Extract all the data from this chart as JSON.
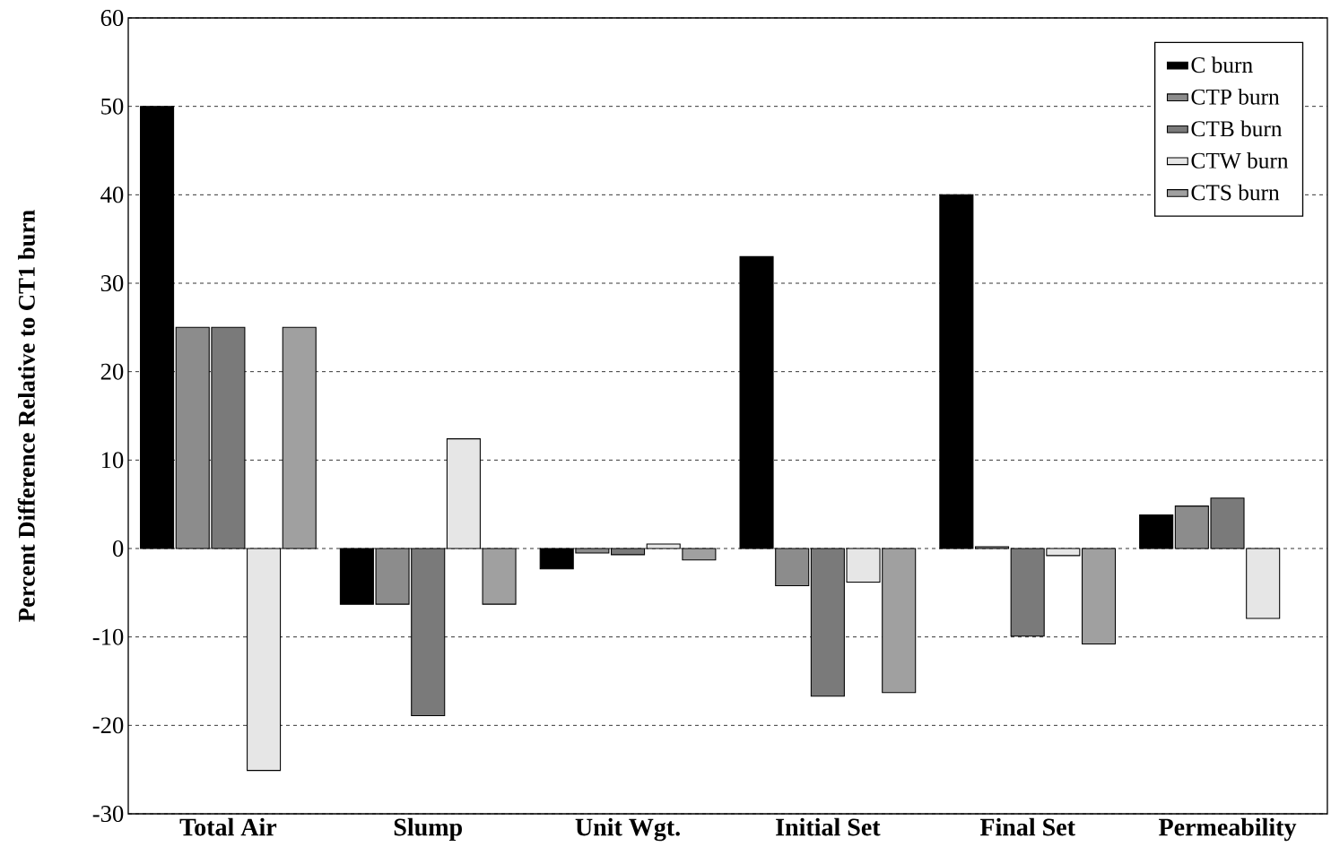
{
  "chart_data": {
    "type": "bar",
    "ylabel": "Percent Difference Relative to CT1 burn",
    "categories": [
      "Total Air",
      "Slump",
      "Unit Wgt.",
      "Initial Set",
      "Final Set",
      "Permeability"
    ],
    "series": [
      {
        "name": "C burn",
        "color": "#000000",
        "values": [
          50,
          -6.3,
          -2.3,
          33,
          40,
          3.8
        ]
      },
      {
        "name": "CTP burn",
        "color": "#8c8c8c",
        "values": [
          25,
          -6.3,
          -0.5,
          -4.2,
          0.2,
          4.8
        ]
      },
      {
        "name": "CTB burn",
        "color": "#7a7a7a",
        "values": [
          25,
          -18.9,
          -0.7,
          -16.7,
          -9.9,
          5.7
        ]
      },
      {
        "name": "CTW burn",
        "color": "#e6e6e6",
        "values": [
          -25.1,
          12.4,
          0.5,
          -3.8,
          -0.8,
          -7.9
        ]
      },
      {
        "name": "CTS burn",
        "color": "#a0a0a0",
        "values": [
          25,
          -6.3,
          -1.3,
          -16.3,
          -10.8,
          null
        ]
      }
    ],
    "ylim": [
      -30,
      60
    ],
    "yticks": [
      -30,
      -20,
      -10,
      0,
      10,
      20,
      30,
      40,
      50,
      60
    ],
    "grid": "y",
    "legend": "top right"
  }
}
